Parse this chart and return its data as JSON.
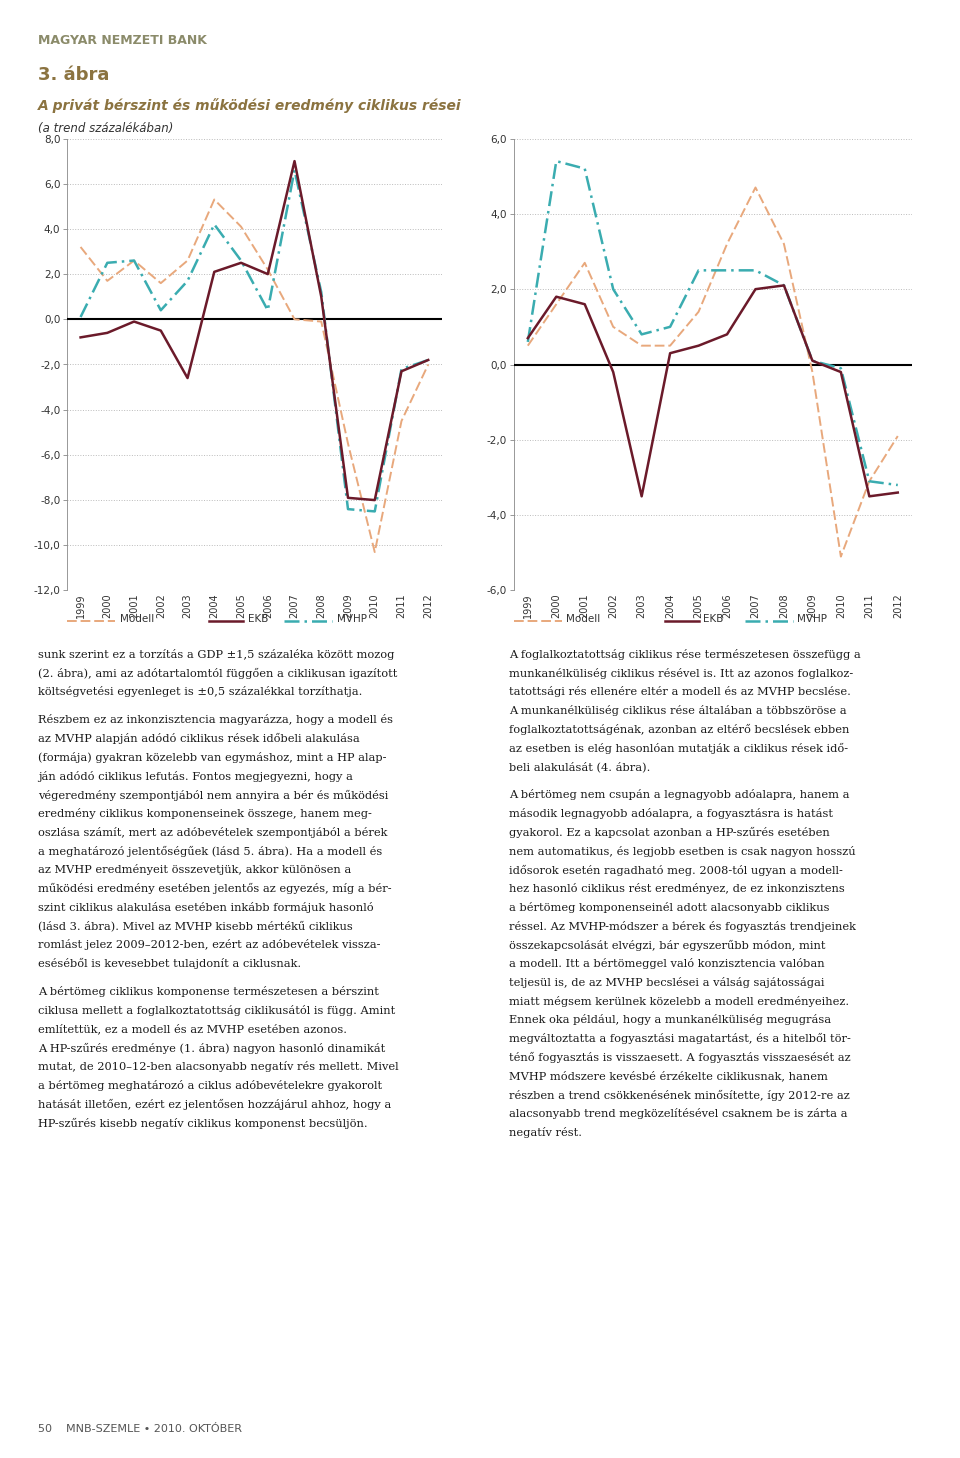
{
  "header": "MAGYAR NEMZETI BANK",
  "figure_number": "3. ábra",
  "title": "A privát bérszint és működési eredmény ciklikus rései",
  "subtitle": "(a trend százalékában)",
  "years": [
    1999,
    2000,
    2001,
    2002,
    2003,
    2004,
    2005,
    2006,
    2007,
    2008,
    2009,
    2010,
    2011,
    2012
  ],
  "chart1": {
    "ylim": [
      -12,
      8
    ],
    "yticks": [
      -12,
      -10,
      -8,
      -6,
      -4,
      -2,
      0,
      2,
      4,
      6,
      8
    ],
    "modell": [
      3.2,
      1.7,
      2.6,
      1.6,
      2.6,
      5.3,
      4.1,
      2.2,
      0.0,
      -0.1,
      -5.5,
      -10.3,
      -4.5,
      -2.0
    ],
    "ekb": [
      -0.8,
      -0.6,
      -0.1,
      -0.5,
      -2.6,
      2.1,
      2.5,
      2.0,
      7.0,
      1.0,
      -7.9,
      -8.0,
      -2.3,
      -1.8
    ],
    "mvhp": [
      0.1,
      2.5,
      2.6,
      0.4,
      1.7,
      4.2,
      2.6,
      0.4,
      6.6,
      1.2,
      -8.4,
      -8.5,
      -2.2,
      -1.8
    ]
  },
  "chart2": {
    "ylim": [
      -6,
      6
    ],
    "yticks": [
      -6,
      -4,
      -2,
      0,
      2,
      4,
      6
    ],
    "modell": [
      0.5,
      1.6,
      2.7,
      1.0,
      0.5,
      0.5,
      1.4,
      3.2,
      4.7,
      3.2,
      -0.2,
      -5.1,
      -3.1,
      -1.9
    ],
    "ekb": [
      0.7,
      1.8,
      1.6,
      -0.2,
      -3.5,
      0.3,
      0.5,
      0.8,
      2.0,
      2.1,
      0.1,
      -0.2,
      -3.5,
      -3.4
    ],
    "mvhp": [
      0.6,
      5.4,
      5.2,
      2.0,
      0.8,
      1.0,
      2.5,
      2.5,
      2.5,
      2.1,
      0.1,
      -0.1,
      -3.1,
      -3.2
    ]
  },
  "legend_modell": "Modell",
  "legend_ekb": "EKB",
  "legend_mvhp": "MVHP",
  "color_modell": "#E8A87C",
  "color_ekb": "#6B1A2A",
  "color_mvhp": "#3AACB0",
  "color_title_bar": "#C8B08C",
  "color_header": "#8B8B6A",
  "color_figure_num": "#8B7340",
  "color_chart_title": "#8B7340",
  "text_left_lines": [
    "sunk szerint ez a torzítás a GDP ±1,5 százaléka között mozog",
    "(2. ábra), ami az adótartalomtól függően a ciklikusan igazított",
    "költségvetési egyenleget is ±0,5 százalékkal torzíthatja.",
    "",
    "Részbem ez az inkonzisztencia magyarázza, hogy a modell és",
    "az MVHP alapján adódó ciklikus rések időbeli alakulása",
    "(formája) gyakran közelebb van egymáshoz, mint a HP alap-",
    "ján adódó ciklikus lefutás. Fontos megjegyezni, hogy a",
    "végeredmény szempontjából nem annyira a bér és működési",
    "eredmény ciklikus komponenseinek összege, hanem meg-",
    "oszlása számít, mert az adóbevételek szempontjából a bérek",
    "a meghatározó jelentőségűek (lásd 5. ábra). Ha a modell és",
    "az MVHP eredményeit összevetjük, akkor különösen a",
    "működési eredmény esetében jelentős az egyezés, míg a bér-",
    "szint ciklikus alakulása esetében inkább formájuk hasonló",
    "(lásd 3. ábra). Mivel az MVHP kisebb mértékű ciklikus",
    "romlást jelez 2009–2012-ben, ezért az adóbevételek vissza-",
    "eséséből is kevesebbet tulajdonít a ciklusnak.",
    "",
    "A bértömeg ciklikus komponense természetesen a bérszint",
    "ciklusa mellett a foglalkoztatottság ciklikusától is függ. Amint",
    "említettük, ez a modell és az MVHP esetében azonos.",
    "A HP-szűrés eredménye (1. ábra) nagyon hasonló dinamikát",
    "mutat, de 2010–12-ben alacsonyabb negatív rés mellett. Mivel",
    "a bértömeg meghatározó a ciklus adóbevételekre gyakorolt",
    "hatását illetően, ezért ez jelentősen hozzájárul ahhoz, hogy a",
    "HP-szűrés kisebb negatív ciklikus komponenst becsüljön."
  ],
  "text_right_lines": [
    "A foglalkoztatottság ciklikus rése természetesen összefügg a",
    "munkanélküliség ciklikus résével is. Itt az azonos foglalkoz-",
    "tatottsági rés ellenére eltér a modell és az MVHP becslése.",
    "A munkanélküliség ciklikus rése általában a többszöröse a",
    "foglalkoztatottságénak, azonban az eltérő becslések ebben",
    "az esetben is elég hasonlóan mutatják a ciklikus rések idő-",
    "beli alakulását (4. ábra).",
    "",
    "A bértömeg nem csupán a legnagyobb adóalapra, hanem a",
    "második legnagyobb adóalapra, a fogyasztásra is hatást",
    "gyakorol. Ez a kapcsolat azonban a HP-szűrés esetében",
    "nem automatikus, és legjobb esetben is csak nagyon hosszú",
    "idősorok esetén ragadható meg. 2008-tól ugyan a modell-",
    "hez hasonló ciklikus rést eredményez, de ez inkonzisztens",
    "a bértömeg komponenseinél adott alacsonyabb ciklikus",
    "réssel. Az MVHP-módszer a bérek és fogyasztás trendjeinek",
    "összekapcsolását elvégzi, bár egyszerűbb módon, mint",
    "a modell. Itt a bértömeggel való konzisztencia valóban",
    "teljesül is, de az MVHP becslései a válság sajátosságai",
    "miatt mégsem kerülnek közelebb a modell eredményeihez.",
    "Ennek oka például, hogy a munkanélküliség megugrása",
    "megváltoztatta a fogyasztási magatartást, és a hitelből tör-",
    "ténő fogyasztás is visszaesett. A fogyasztás visszaesését az",
    "MVHP módszere kevésbé érzékelte ciklikusnak, hanem",
    "részben a trend csökkenésének minősítette, így 2012-re az",
    "alacsonyabb trend megközelítésével csaknem be is zárta a",
    "negatív rést."
  ],
  "footer": "50    MNB-SZEMLE • 2010. OKTÓBER"
}
